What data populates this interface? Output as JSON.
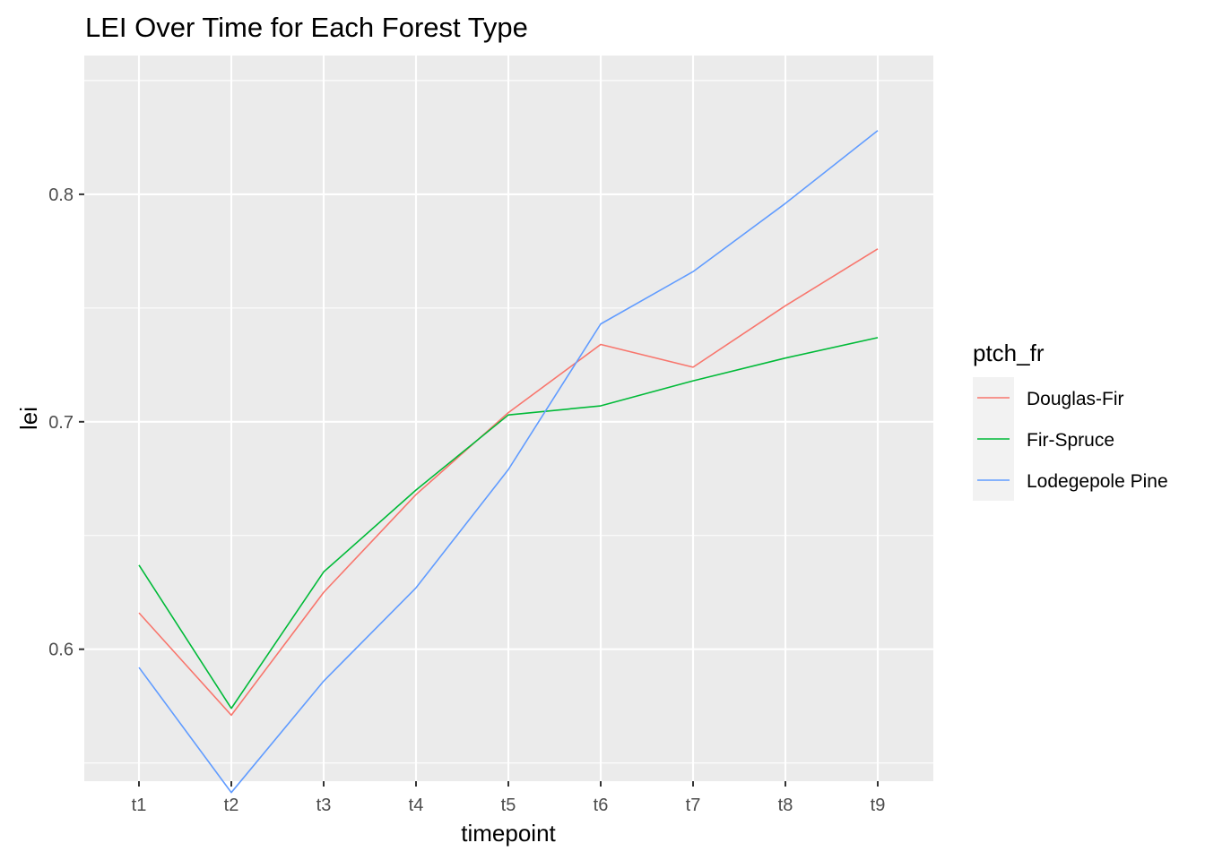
{
  "chart_data": {
    "type": "line",
    "title": "LEI Over Time for Each Forest Type",
    "xlabel": "timepoint",
    "ylabel": "lei",
    "categories": [
      "t1",
      "t2",
      "t3",
      "t4",
      "t5",
      "t6",
      "t7",
      "t8",
      "t9"
    ],
    "ylim": [
      0.542,
      0.861
    ],
    "yticks": [
      0.6,
      0.7,
      0.8
    ],
    "ytick_labels": [
      "0.6",
      "0.7",
      "0.8"
    ],
    "grid": true,
    "legend": {
      "title": "ptch_fr",
      "position": "right"
    },
    "series": [
      {
        "name": "Douglas-Fir",
        "color": "#F8766D",
        "values": [
          0.616,
          0.571,
          0.625,
          0.668,
          0.704,
          0.734,
          0.724,
          0.751,
          0.776
        ]
      },
      {
        "name": "Fir-Spruce",
        "color": "#00BA38",
        "values": [
          0.637,
          0.574,
          0.634,
          0.67,
          0.703,
          0.707,
          0.718,
          0.728,
          0.737
        ]
      },
      {
        "name": "Lodegepole Pine",
        "color": "#619CFF",
        "values": [
          0.592,
          0.537,
          0.586,
          0.627,
          0.679,
          0.743,
          0.766,
          0.796,
          0.828
        ]
      }
    ]
  }
}
